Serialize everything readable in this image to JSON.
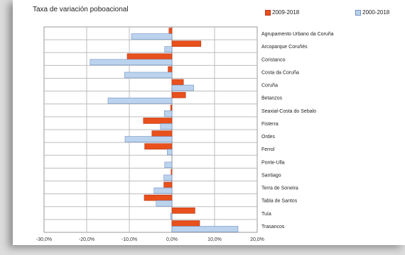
{
  "chart_data": {
    "type": "bar",
    "orientation": "horizontal",
    "title": "Taxa de variación poboacional",
    "categories": [
      "Agrupamento Urbano da Coruña",
      "Arcoparque Coruñés",
      "Coristanco",
      "Costa da Coruña",
      "Coruña",
      "Betanzos",
      "Seaxial-Costa do Sebalo",
      "Fisterra",
      "Ordes",
      "Ferrol",
      "Ponte-Ulla",
      "Santiago",
      "Terra de Soneira",
      "Tabla de Santos",
      "Tuía",
      "Trasancos"
    ],
    "series": [
      {
        "name": "2009-2018",
        "color": "#e8501c",
        "values": [
          -0.7,
          6.8,
          -10.5,
          -0.9,
          2.7,
          3.2,
          -0.3,
          -6.7,
          -4.7,
          -6.4,
          0,
          -0.2,
          -1.9,
          -6.5,
          5.4,
          6.5
        ]
      },
      {
        "name": "2000-2018",
        "color": "#bcd3ee",
        "values": [
          -9.5,
          -1.7,
          -19.2,
          -11.1,
          5.1,
          -15,
          -1.8,
          -2.7,
          -11,
          -1.1,
          -1.7,
          -1.9,
          -4.2,
          -3.7,
          -0.3,
          15.5
        ]
      }
    ],
    "xlim": [
      -30,
      20
    ],
    "xticks": [
      "-30,0%",
      "-20,0%",
      "-10,0%",
      "0,0%",
      "10,0%",
      "20,0%"
    ],
    "xtick_values": [
      -30,
      -20,
      -10,
      0,
      10,
      20
    ],
    "grid": true,
    "legend_position": "top-right"
  }
}
